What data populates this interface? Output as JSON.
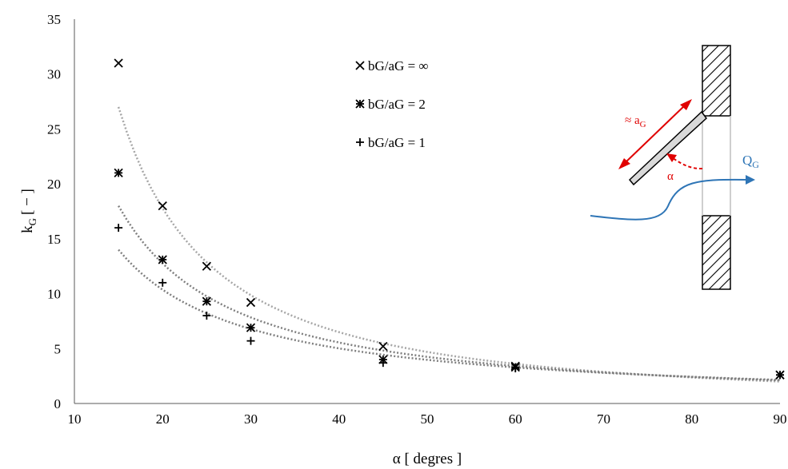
{
  "chart_data": {
    "type": "scatter",
    "xlabel": "α [ degres ]",
    "ylabel": "k",
    "ylabel_sub": "G",
    "ylabel_unit": "[ − ]",
    "xlim": [
      10,
      90
    ],
    "ylim": [
      0,
      35
    ],
    "xticks": [
      10,
      20,
      30,
      40,
      50,
      60,
      70,
      80,
      90
    ],
    "yticks": [
      0,
      5,
      10,
      15,
      20,
      25,
      30,
      35
    ],
    "grid": false,
    "legend_position": "top-center",
    "series": [
      {
        "name": "bG/aG = ∞",
        "marker": "x",
        "x": [
          15,
          20,
          25,
          30,
          45,
          60,
          90
        ],
        "y": [
          31.0,
          18.0,
          12.5,
          9.2,
          5.2,
          3.4,
          2.6
        ],
        "trend": {
          "type": "power",
          "x": [
            15,
            90
          ],
          "y": [
            27.0,
            2.0
          ]
        }
      },
      {
        "name": "bG/aG = 2",
        "marker": "asterisk",
        "x": [
          15,
          20,
          25,
          30,
          45,
          60,
          90
        ],
        "y": [
          21.0,
          13.1,
          9.3,
          6.9,
          4.0,
          3.3,
          2.6
        ],
        "trend": {
          "type": "power",
          "x": [
            15,
            90
          ],
          "y": [
            18.0,
            2.1
          ]
        }
      },
      {
        "name": "bG/aG = 1",
        "marker": "plus",
        "x": [
          15,
          20,
          25,
          30,
          45,
          60,
          90
        ],
        "y": [
          16.0,
          11.0,
          8.0,
          5.7,
          3.7,
          3.2,
          2.6
        ],
        "trend": {
          "type": "power",
          "x": [
            15,
            90
          ],
          "y": [
            14.0,
            2.15
          ]
        }
      }
    ]
  },
  "inset": {
    "length_label": "≈ a",
    "length_label_sub": "G",
    "angle_label": "α",
    "flow_label": "Q",
    "flow_label_sub": "G",
    "colors": {
      "annotation": "#e00000",
      "flow": "#2e75b6",
      "hatch": "#000000"
    }
  }
}
